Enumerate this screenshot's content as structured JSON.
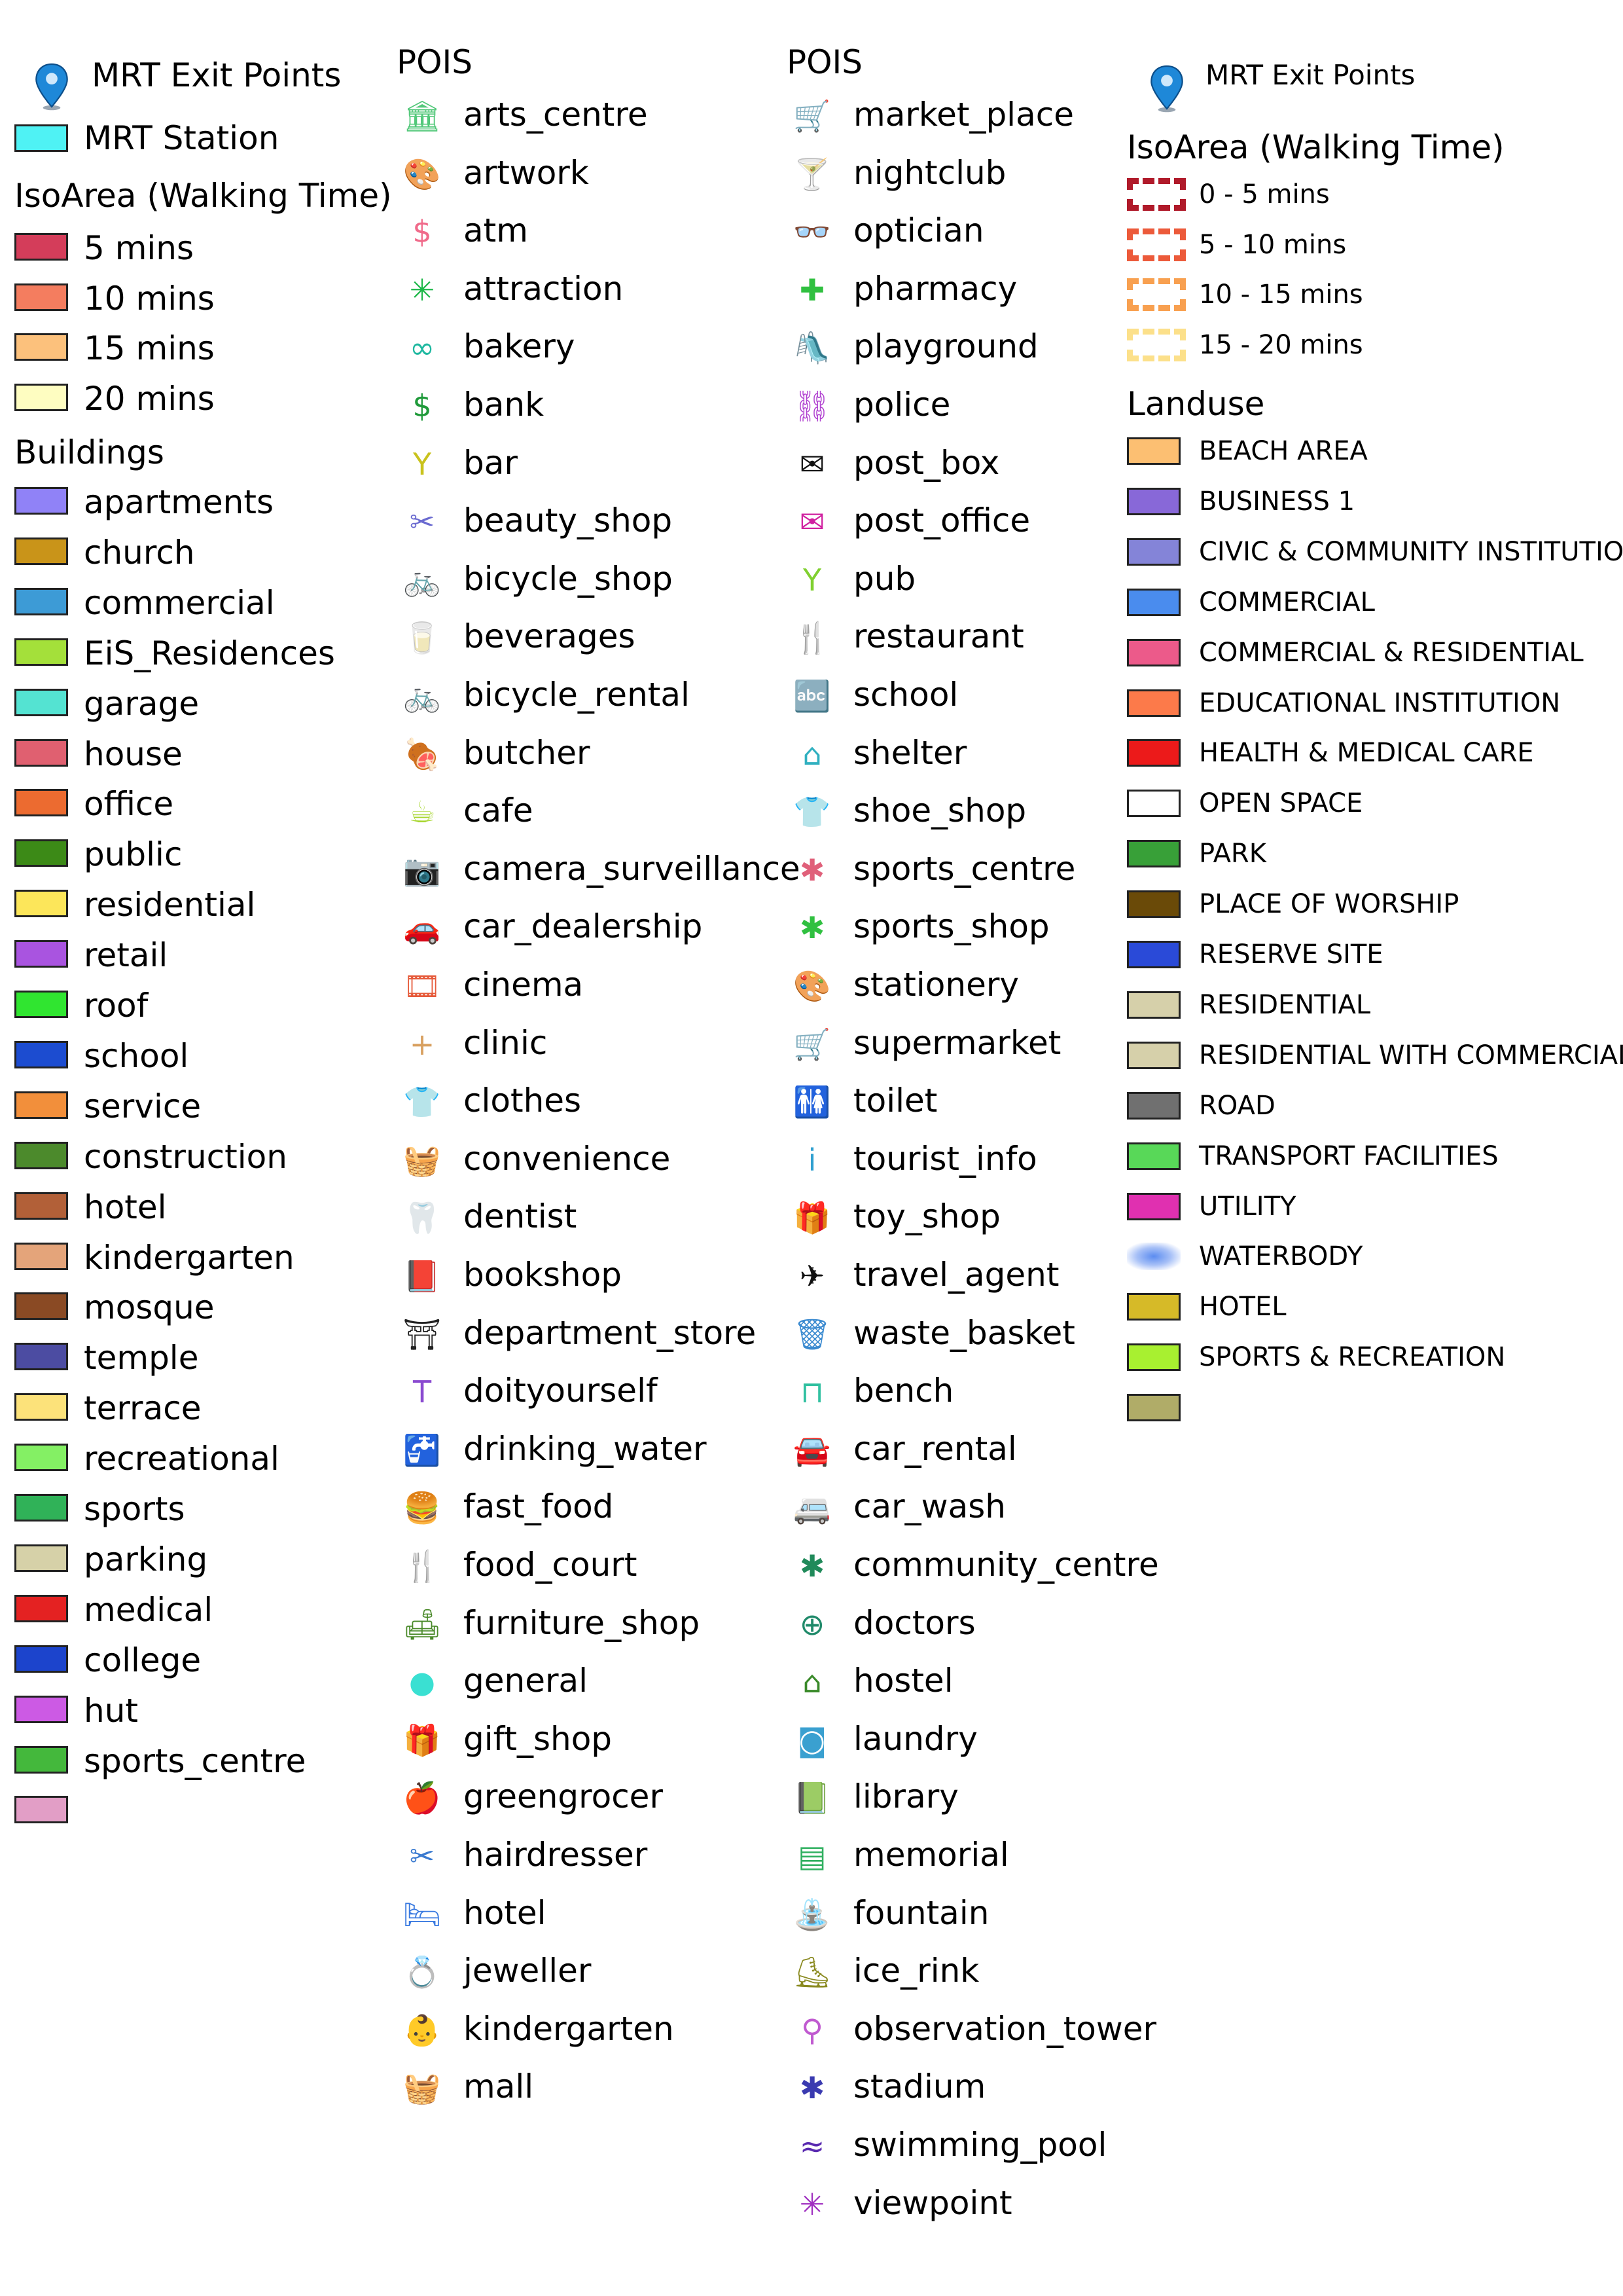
{
  "col1": {
    "mrt_exit_label": "MRT Exit Points",
    "mrt_station_label": "MRT Station",
    "mrt_station_color": "#4ff2f4",
    "iso_heading": "IsoArea (Walking Time)",
    "iso": [
      {
        "label": "5 mins",
        "color": "#d43d5a"
      },
      {
        "label": "10 mins",
        "color": "#f47d5f"
      },
      {
        "label": "15 mins",
        "color": "#fcc17c"
      },
      {
        "label": "20 mins",
        "color": "#fefdc1"
      }
    ],
    "buildings_heading": "Buildings",
    "buildings": [
      {
        "label": "apartments",
        "color": "#9082f7"
      },
      {
        "label": "church",
        "color": "#c99419"
      },
      {
        "label": "commercial",
        "color": "#3d9bd6"
      },
      {
        "label": "EiS_Residences",
        "color": "#a4e03a"
      },
      {
        "label": "garage",
        "color": "#54e3d2"
      },
      {
        "label": "house",
        "color": "#e06070"
      },
      {
        "label": "office",
        "color": "#ec6b30"
      },
      {
        "label": "public",
        "color": "#3c8a17"
      },
      {
        "label": "residential",
        "color": "#fce65a"
      },
      {
        "label": "retail",
        "color": "#a954e0"
      },
      {
        "label": "roof",
        "color": "#30e530"
      },
      {
        "label": "school",
        "color": "#1c4cd0"
      },
      {
        "label": "service",
        "color": "#f28f3b"
      },
      {
        "label": "construction",
        "color": "#4c8a2c"
      },
      {
        "label": "hotel",
        "color": "#b26038"
      },
      {
        "label": "kindergarten",
        "color": "#e4a47a"
      },
      {
        "label": "mosque",
        "color": "#8a4a24"
      },
      {
        "label": "temple",
        "color": "#4c4ca2"
      },
      {
        "label": "terrace",
        "color": "#fce27a"
      },
      {
        "label": "recreational",
        "color": "#84f064"
      },
      {
        "label": "sports",
        "color": "#30b258"
      },
      {
        "label": "parking",
        "color": "#d6d1a8"
      },
      {
        "label": "medical",
        "color": "#e42222"
      },
      {
        "label": "college",
        "color": "#1c44cc"
      },
      {
        "label": "hut",
        "color": "#cc5ae4"
      },
      {
        "label": "sports_centre",
        "color": "#44b83c"
      },
      {
        "label": "",
        "color": "#e29ec6"
      }
    ]
  },
  "col2": {
    "heading": "POIS",
    "items": [
      {
        "label": "arts_centre",
        "icon": "arts-centre-icon",
        "glyph": "🏛",
        "color": "#53c87a"
      },
      {
        "label": "artwork",
        "icon": "artwork-icon",
        "glyph": "🎨",
        "color": "#c225c2"
      },
      {
        "label": "atm",
        "icon": "atm-icon",
        "glyph": "$",
        "color": "#f06a8a"
      },
      {
        "label": "attraction",
        "icon": "attraction-icon",
        "glyph": "✳",
        "color": "#1fb84a"
      },
      {
        "label": "bakery",
        "icon": "bakery-icon",
        "glyph": "∞",
        "color": "#1fb8a0"
      },
      {
        "label": "bank",
        "icon": "bank-icon",
        "glyph": "$",
        "color": "#1f9a3a"
      },
      {
        "label": "bar",
        "icon": "bar-icon",
        "glyph": "Y",
        "color": "#c9c21c"
      },
      {
        "label": "beauty_shop",
        "icon": "beauty-shop-icon",
        "glyph": "✂",
        "color": "#6a6ad0"
      },
      {
        "label": "bicycle_shop",
        "icon": "bicycle-shop-icon",
        "glyph": "🚲",
        "color": "#d8a020"
      },
      {
        "label": "beverages",
        "icon": "beverages-icon",
        "glyph": "🥛",
        "color": "#2a6ae0"
      },
      {
        "label": "bicycle_rental",
        "icon": "bicycle-rental-icon",
        "glyph": "🚲",
        "color": "#e052c8"
      },
      {
        "label": "butcher",
        "icon": "butcher-icon",
        "glyph": "🍖",
        "color": "#222222"
      },
      {
        "label": "cafe",
        "icon": "cafe-icon",
        "glyph": "☕",
        "color": "#a8d630"
      },
      {
        "label": "camera_surveillance",
        "icon": "camera-icon",
        "glyph": "📷",
        "color": "#111111"
      },
      {
        "label": "car_dealership",
        "icon": "car-dealership-icon",
        "glyph": "🚗",
        "color": "#e83a6a"
      },
      {
        "label": "cinema",
        "icon": "cinema-icon",
        "glyph": "🎞",
        "color": "#e65a3a"
      },
      {
        "label": "clinic",
        "icon": "clinic-icon",
        "glyph": "+",
        "color": "#d8a060"
      },
      {
        "label": "clothes",
        "icon": "clothes-icon",
        "glyph": "👕",
        "color": "#d42020"
      },
      {
        "label": "convenience",
        "icon": "convenience-icon",
        "glyph": "🧺",
        "color": "#e0b020"
      },
      {
        "label": "dentist",
        "icon": "dentist-icon",
        "glyph": "🦷",
        "color": "#7a5ad0"
      },
      {
        "label": "bookshop",
        "icon": "bookshop-icon",
        "glyph": "📕",
        "color": "#d88a60"
      },
      {
        "label": "department_store",
        "icon": "department-store-icon",
        "glyph": "⛩",
        "color": "#222222"
      },
      {
        "label": "doityourself",
        "icon": "doityourself-icon",
        "glyph": "T",
        "color": "#8a4ad0"
      },
      {
        "label": "drinking_water",
        "icon": "drinking-water-icon",
        "glyph": "🚰",
        "color": "#a8d630"
      },
      {
        "label": "fast_food",
        "icon": "fast-food-icon",
        "glyph": "🍔",
        "color": "#2a52d0"
      },
      {
        "label": "food_court",
        "icon": "food-court-icon",
        "glyph": "🍴",
        "color": "#c220c2"
      },
      {
        "label": "furniture_shop",
        "icon": "furniture-shop-icon",
        "glyph": "🛋",
        "color": "#4a8a2a"
      },
      {
        "label": "general",
        "icon": "general-icon",
        "glyph": "●",
        "color": "#3ae0d2"
      },
      {
        "label": "gift_shop",
        "icon": "gift-shop-icon",
        "glyph": "🎁",
        "color": "#e85a7a"
      },
      {
        "label": "greengrocer",
        "icon": "greengrocer-icon",
        "glyph": "🍎",
        "color": "#d42020"
      },
      {
        "label": "hairdresser",
        "icon": "hairdresser-icon",
        "glyph": "✂",
        "color": "#3a7ad0"
      },
      {
        "label": "hotel",
        "icon": "hotel-icon",
        "glyph": "🛏",
        "color": "#3a7ae0"
      },
      {
        "label": "jeweller",
        "icon": "jeweller-icon",
        "glyph": "💍",
        "color": "#4ac85a"
      },
      {
        "label": "kindergarten",
        "icon": "kindergarten-icon",
        "glyph": "👶",
        "color": "#30b060"
      },
      {
        "label": "mall",
        "icon": "mall-icon",
        "glyph": "🧺",
        "color": "#e05aa0"
      }
    ]
  },
  "col3": {
    "heading": "POIS",
    "items": [
      {
        "label": "market_place",
        "icon": "market-place-icon",
        "glyph": "🛒",
        "color": "#a030d0"
      },
      {
        "label": "nightclub",
        "icon": "nightclub-icon",
        "glyph": "🍸",
        "color": "#d010c0"
      },
      {
        "label": "optician",
        "icon": "optician-icon",
        "glyph": "👓",
        "color": "#e06a6a"
      },
      {
        "label": "pharmacy",
        "icon": "pharmacy-icon",
        "glyph": "✚",
        "color": "#30c040"
      },
      {
        "label": "playground",
        "icon": "playground-icon",
        "glyph": "🛝",
        "color": "#20b0a0"
      },
      {
        "label": "police",
        "icon": "police-icon",
        "glyph": "⛓",
        "color": "#b040d0"
      },
      {
        "label": "post_box",
        "icon": "post-box-icon",
        "glyph": "✉",
        "color": "#111111"
      },
      {
        "label": "post_office",
        "icon": "post-office-icon",
        "glyph": "✉",
        "color": "#d020a0"
      },
      {
        "label": "pub",
        "icon": "pub-icon",
        "glyph": "Y",
        "color": "#80d030"
      },
      {
        "label": "restaurant",
        "icon": "restaurant-icon",
        "glyph": "🍴",
        "color": "#5a7ad0"
      },
      {
        "label": "school",
        "icon": "school-icon",
        "glyph": "🔤",
        "color": "#2040c0"
      },
      {
        "label": "shelter",
        "icon": "shelter-icon",
        "glyph": "⌂",
        "color": "#30b0c0"
      },
      {
        "label": "shoe_shop",
        "icon": "shoe-shop-icon",
        "glyph": "👕",
        "color": "#20c040"
      },
      {
        "label": "sports_centre",
        "icon": "sports-centre-icon",
        "glyph": "✱",
        "color": "#e0607a"
      },
      {
        "label": "sports_shop",
        "icon": "sports-shop-icon",
        "glyph": "✱",
        "color": "#30c040"
      },
      {
        "label": "stationery",
        "icon": "stationery-icon",
        "glyph": "🎨",
        "color": "#80a020"
      },
      {
        "label": "supermarket",
        "icon": "supermarket-icon",
        "glyph": "🛒",
        "color": "#e0b030"
      },
      {
        "label": "toilet",
        "icon": "toilet-icon",
        "glyph": "🚻",
        "color": "#e0a020"
      },
      {
        "label": "tourist_info",
        "icon": "tourist-info-icon",
        "glyph": "i",
        "color": "#30a0d0"
      },
      {
        "label": "toy_shop",
        "icon": "toy-shop-icon",
        "glyph": "🎁",
        "color": "#e04a6a"
      },
      {
        "label": "travel_agent",
        "icon": "travel-agent-icon",
        "glyph": "✈",
        "color": "#111111"
      },
      {
        "label": "waste_basket",
        "icon": "waste-basket-icon",
        "glyph": "🗑",
        "color": "#3a8ad0"
      },
      {
        "label": "bench",
        "icon": "bench-icon",
        "glyph": "⊓",
        "color": "#30c0a0"
      },
      {
        "label": "car_rental",
        "icon": "car-rental-icon",
        "glyph": "🚘",
        "color": "#6a3ab0"
      },
      {
        "label": "car_wash",
        "icon": "car-wash-icon",
        "glyph": "🚐",
        "color": "#e04a20"
      },
      {
        "label": "community_centre",
        "icon": "community-centre-icon",
        "glyph": "✱",
        "color": "#208a5a"
      },
      {
        "label": "doctors",
        "icon": "doctors-icon",
        "glyph": "⊕",
        "color": "#208a6a"
      },
      {
        "label": "hostel",
        "icon": "hostel-icon",
        "glyph": "⌂",
        "color": "#3a8a2a"
      },
      {
        "label": "laundry",
        "icon": "laundry-icon",
        "glyph": "◙",
        "color": "#3aa0d0"
      },
      {
        "label": "library",
        "icon": "library-icon",
        "glyph": "📗",
        "color": "#20b0a0"
      },
      {
        "label": "memorial",
        "icon": "memorial-icon",
        "glyph": "▤",
        "color": "#30b060"
      },
      {
        "label": "fountain",
        "icon": "fountain-icon",
        "glyph": "⛲",
        "color": "#5a7ad0"
      },
      {
        "label": "ice_rink",
        "icon": "ice-rink-icon",
        "glyph": "⛸",
        "color": "#8a8a20"
      },
      {
        "label": "observation_tower",
        "icon": "observation-tower-icon",
        "glyph": "⚲",
        "color": "#c05ad0"
      },
      {
        "label": "stadium",
        "icon": "stadium-icon",
        "glyph": "✱",
        "color": "#3a3ab0"
      },
      {
        "label": "swimming_pool",
        "icon": "swimming-pool-icon",
        "glyph": "≈",
        "color": "#5a2ab0"
      },
      {
        "label": "viewpoint",
        "icon": "viewpoint-icon",
        "glyph": "✳",
        "color": "#a030c0"
      }
    ]
  },
  "col4": {
    "mrt_exit_label": "MRT Exit Points",
    "iso_heading": "IsoArea (Walking Time)",
    "iso": [
      {
        "label": "0 - 5 mins",
        "color": "#b01a2a"
      },
      {
        "label": "5 - 10 mins",
        "color": "#ec5a3a"
      },
      {
        "label": "10 - 15 mins",
        "color": "#f8a050"
      },
      {
        "label": "15 - 20 mins",
        "color": "#fce08a"
      }
    ],
    "landuse_heading": "Landuse",
    "landuse": [
      {
        "label": "BEACH AREA",
        "color": "#fcbf72"
      },
      {
        "label": "BUSINESS 1",
        "color": "#8868d8"
      },
      {
        "label": "CIVIC & COMMUNITY INSTITUTION",
        "color": "#8484d8"
      },
      {
        "label": "COMMERCIAL",
        "color": "#4a8cee"
      },
      {
        "label": "COMMERCIAL & RESIDENTIAL",
        "color": "#ec5a8a"
      },
      {
        "label": "EDUCATIONAL INSTITUTION",
        "color": "#fc7a4a"
      },
      {
        "label": "HEALTH & MEDICAL CARE",
        "color": "#ec1a1a"
      },
      {
        "label": "OPEN SPACE",
        "color": "#ffffff"
      },
      {
        "label": "PARK",
        "color": "#38a038"
      },
      {
        "label": "PLACE OF WORSHIP",
        "color": "#6a4a08"
      },
      {
        "label": "RESERVE SITE",
        "color": "#2a4ad8"
      },
      {
        "label": "RESIDENTIAL",
        "color": "#d6d0aa"
      },
      {
        "label": "RESIDENTIAL WITH COMMERCIAL",
        "color": "#d6d0aa"
      },
      {
        "label": "ROAD",
        "color": "#707070"
      },
      {
        "label": "TRANSPORT FACILITIES",
        "color": "#58d858"
      },
      {
        "label": "UTILITY",
        "color": "#e030b0"
      },
      {
        "label": "WATERBODY",
        "color": "#6a94f0"
      },
      {
        "label": "HOTEL",
        "color": "#d6ba28"
      },
      {
        "label": "SPORTS & RECREATION",
        "color": "#a8f030"
      },
      {
        "label": "",
        "color": "#b0ac68"
      }
    ]
  }
}
